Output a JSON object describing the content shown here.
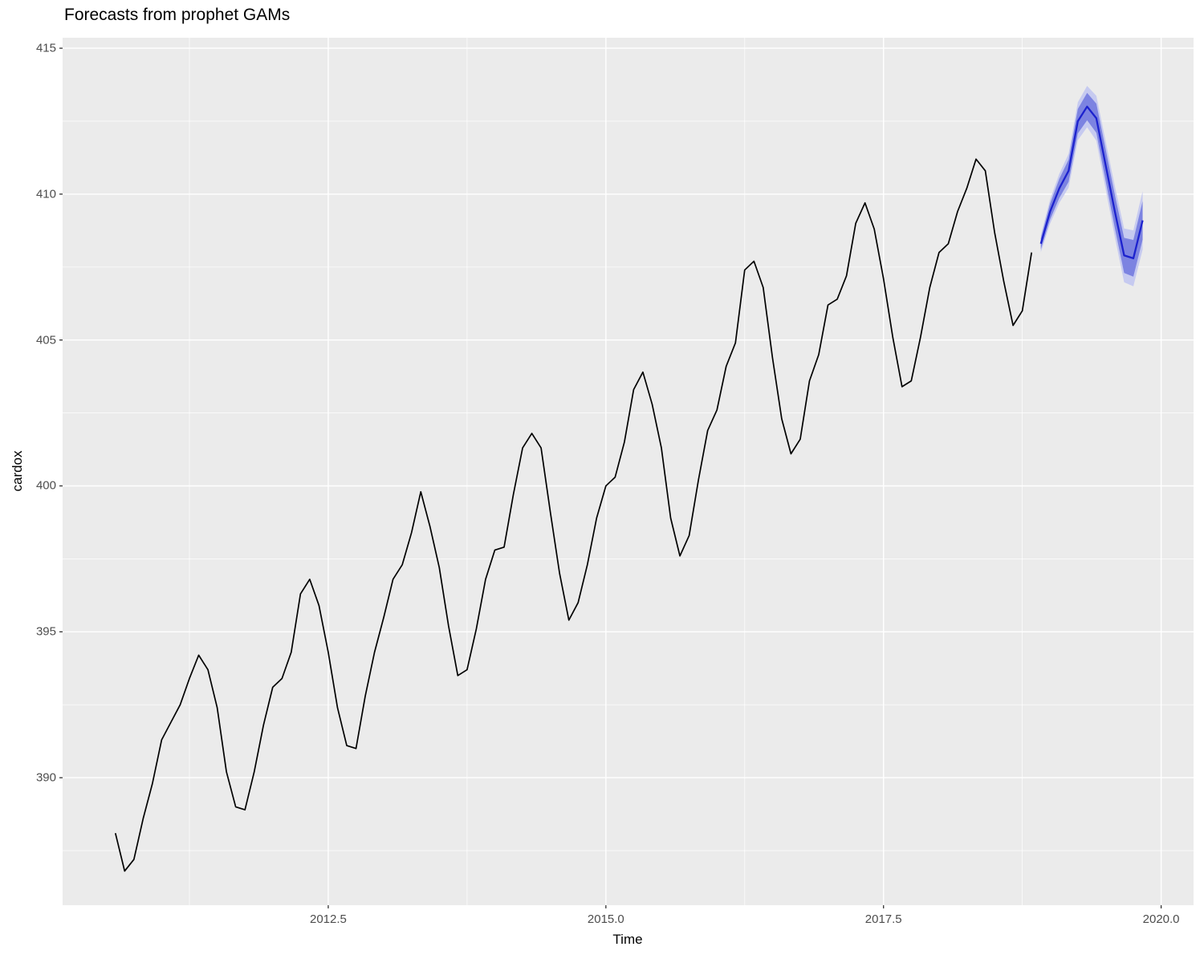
{
  "title": "Forecasts from prophet GAMs",
  "chart_data": {
    "type": "line",
    "title": "Forecasts from prophet GAMs",
    "xlabel": "Time",
    "ylabel": "cardox",
    "xlim": [
      2010.108,
      2020.292
    ],
    "ylim": [
      385.63,
      415.36
    ],
    "grid": true,
    "legend": "none",
    "panel_bg": "#EBEBEB",
    "grid_color": "#FFFFFF",
    "tick_mark_color": "#333333",
    "tick_label_color": "#4D4D4D",
    "x_ticks": [
      {
        "value": 2012.5,
        "label": "2012.5"
      },
      {
        "value": 2015.0,
        "label": "2015.0"
      },
      {
        "value": 2017.5,
        "label": "2017.5"
      },
      {
        "value": 2020.0,
        "label": "2020.0"
      }
    ],
    "y_ticks": [
      {
        "value": 390,
        "label": "390"
      },
      {
        "value": 395,
        "label": "395"
      },
      {
        "value": 400,
        "label": "400"
      },
      {
        "value": 405,
        "label": "405"
      },
      {
        "value": 410,
        "label": "410"
      },
      {
        "value": 415,
        "label": "415"
      }
    ],
    "x_minor": [
      2011.25,
      2013.75,
      2016.25,
      2018.75
    ],
    "y_minor": [
      387.5,
      392.5,
      397.5,
      402.5,
      407.5,
      412.5
    ],
    "series": [
      {
        "name": "history",
        "kind": "line",
        "color": "#000000",
        "width": 1.7,
        "start": 2010.58333,
        "step": 0.0833333,
        "values": [
          388.1,
          386.8,
          387.2,
          388.6,
          389.8,
          391.3,
          391.9,
          392.5,
          393.4,
          394.2,
          393.7,
          392.4,
          390.2,
          389.0,
          388.9,
          390.2,
          391.8,
          393.1,
          393.4,
          394.3,
          396.3,
          396.8,
          395.9,
          394.3,
          392.4,
          391.1,
          391.0,
          392.8,
          394.3,
          395.5,
          396.8,
          397.3,
          398.4,
          399.8,
          398.6,
          397.2,
          395.2,
          393.5,
          393.7,
          395.1,
          396.8,
          397.8,
          397.9,
          399.7,
          401.3,
          401.8,
          401.3,
          399.1,
          397.0,
          395.4,
          396.0,
          397.3,
          398.9,
          400.0,
          400.3,
          401.5,
          403.3,
          403.9,
          402.8,
          401.3,
          398.9,
          397.6,
          398.3,
          400.2,
          401.9,
          402.6,
          404.1,
          404.9,
          407.4,
          407.7,
          406.8,
          404.4,
          402.3,
          401.1,
          401.6,
          403.6,
          404.5,
          406.2,
          406.4,
          407.2,
          409.0,
          409.7,
          408.8,
          407.1,
          405.1,
          403.4,
          403.6,
          405.1,
          406.8,
          408.0,
          408.3,
          409.4,
          410.2,
          411.2,
          410.8,
          408.7,
          407.0,
          405.5,
          406.0,
          408.0
        ]
      },
      {
        "name": "forecast",
        "kind": "forecast",
        "color": "#1C22CE",
        "width": 2.3,
        "ribbon80_color": "#7C83E1",
        "ribbon95_color": "#C6CAF0",
        "start": 2018.91667,
        "step": 0.0833333,
        "mean": [
          408.3,
          409.4,
          410.2,
          410.8,
          412.5,
          413.0,
          412.6,
          411.0,
          409.4,
          407.9,
          407.8,
          409.1
        ],
        "hi80": [
          408.49,
          409.67,
          410.53,
          411.18,
          412.92,
          413.47,
          413.1,
          411.54,
          409.97,
          408.5,
          408.43,
          409.76
        ],
        "lo80": [
          408.11,
          409.13,
          409.87,
          410.42,
          412.08,
          412.53,
          412.1,
          410.46,
          408.83,
          407.3,
          407.17,
          408.44
        ],
        "hi95": [
          408.59,
          409.81,
          410.7,
          411.38,
          413.15,
          413.71,
          413.37,
          411.82,
          410.27,
          408.82,
          408.76,
          410.1
        ],
        "lo95": [
          408.01,
          408.99,
          409.7,
          410.22,
          411.85,
          412.29,
          411.83,
          410.18,
          408.53,
          406.98,
          406.84,
          408.1
        ]
      }
    ]
  }
}
